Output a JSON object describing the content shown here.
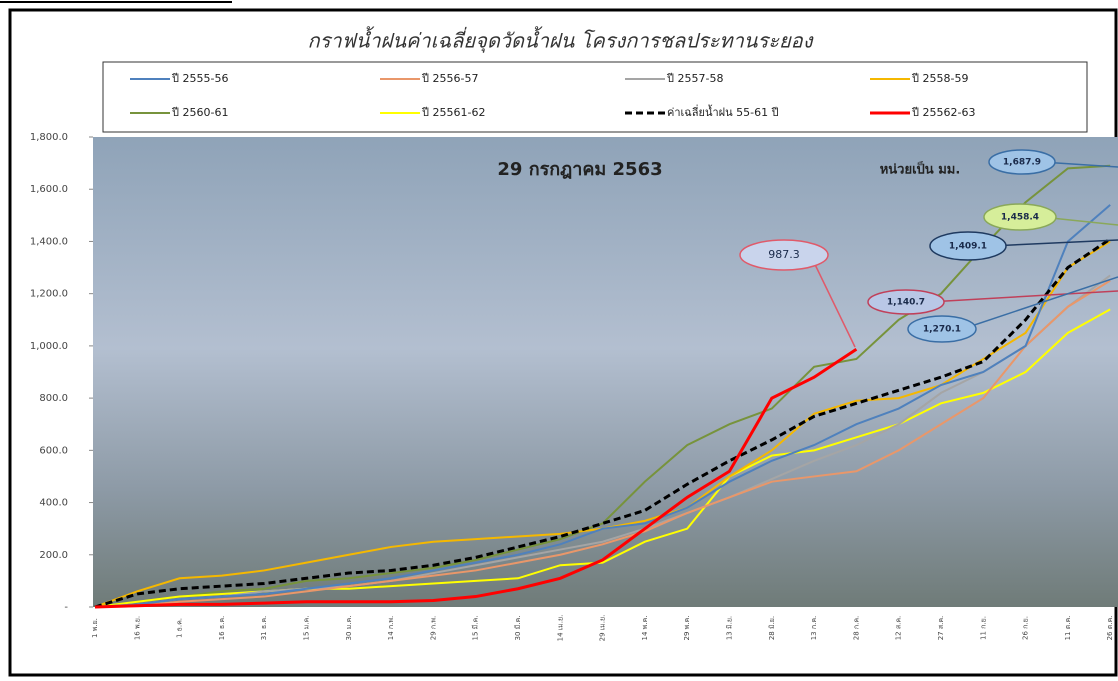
{
  "chart_data": {
    "type": "line",
    "title": "กราฟน้ำฝนค่าเฉลี่ยจุดวัดน้ำฝน โครงการชลประทานระยอง",
    "date_label": "29 กรกฎาคม 2563",
    "unit_label": "หน่วยเป็น มม.",
    "categories": [
      "1 พ.ย.",
      "16 พ.ย.",
      "1 ธ.ค.",
      "16 ธ.ค.",
      "31 ธ.ค.",
      "15 ม.ค.",
      "30 ม.ค.",
      "14 ก.พ.",
      "29 ก.พ.",
      "15 มี.ค.",
      "30 มี.ค.",
      "14 เม.ย.",
      "29 เม.ย.",
      "14 พ.ค.",
      "29 พ.ค.",
      "13 มิ.ย.",
      "28 มิ.ย.",
      "13 ก.ค.",
      "28 ก.ค.",
      "12 ส.ค.",
      "27 ส.ค.",
      "11 ก.ย.",
      "26 ก.ย.",
      "11 ต.ค.",
      "26 ต.ค."
    ],
    "ylim": [
      0,
      1800
    ],
    "yticks": [
      {
        "value": 0,
        "label": "-"
      },
      {
        "value": 200,
        "label": "200.0"
      },
      {
        "value": 400,
        "label": "400.0"
      },
      {
        "value": 600,
        "label": "600.0"
      },
      {
        "value": 800,
        "label": "800.0"
      },
      {
        "value": 1000,
        "label": "1,000.0"
      },
      {
        "value": 1200,
        "label": "1,200.0"
      },
      {
        "value": 1400,
        "label": "1,400.0"
      },
      {
        "value": 1600,
        "label": "1,600.0"
      },
      {
        "value": 1800,
        "label": "1,800.0"
      }
    ],
    "series": [
      {
        "name": "ปี 2555-56",
        "color": "#4f81bd",
        "values": [
          0,
          10,
          30,
          40,
          50,
          70,
          90,
          110,
          140,
          170,
          200,
          240,
          300,
          320,
          380,
          480,
          560,
          620,
          700,
          760,
          850,
          900,
          1000,
          1400,
          1540
        ]
      },
      {
        "name": "ปี 2556-57",
        "color": "#e9976a",
        "values": [
          0,
          5,
          20,
          30,
          40,
          60,
          80,
          100,
          120,
          140,
          170,
          200,
          240,
          290,
          360,
          420,
          480,
          500,
          520,
          600,
          700,
          800,
          1000,
          1150,
          1250
        ]
      },
      {
        "name": "ปี 2557-58",
        "color": "#a5a5a5",
        "values": [
          0,
          10,
          30,
          40,
          60,
          70,
          80,
          100,
          130,
          160,
          190,
          220,
          250,
          300,
          360,
          420,
          490,
          560,
          620,
          700,
          820,
          900,
          1000,
          1150,
          1270
        ]
      },
      {
        "name": "ปี 2558-59",
        "color": "#f5b800",
        "values": [
          0,
          60,
          110,
          120,
          140,
          170,
          200,
          230,
          250,
          260,
          270,
          280,
          300,
          330,
          380,
          500,
          600,
          740,
          790,
          800,
          850,
          950,
          1050,
          1300,
          1400
        ]
      },
      {
        "name": "ปี 2560-61",
        "color": "#77933c",
        "values": [
          0,
          20,
          40,
          60,
          70,
          100,
          110,
          130,
          150,
          180,
          220,
          260,
          320,
          480,
          620,
          700,
          760,
          920,
          950,
          1100,
          1200,
          1380,
          1550,
          1680,
          1690
        ]
      },
      {
        "name": "ปี 25561-62",
        "color": "#ffff00",
        "values": [
          0,
          20,
          40,
          50,
          60,
          70,
          70,
          80,
          90,
          100,
          110,
          160,
          170,
          250,
          300,
          500,
          580,
          600,
          650,
          700,
          780,
          820,
          900,
          1050,
          1140
        ]
      },
      {
        "name": "ค่าเฉลี่ยน้ำฝน 55-61 ปี",
        "color": "#000000",
        "dashed": true,
        "values": [
          0,
          50,
          70,
          80,
          90,
          110,
          130,
          140,
          160,
          190,
          230,
          270,
          320,
          370,
          470,
          560,
          640,
          730,
          780,
          830,
          880,
          940,
          1100,
          1300,
          1409.1
        ]
      },
      {
        "name": "ปี 25562-63",
        "color": "#ff0000",
        "values": [
          0,
          5,
          10,
          10,
          15,
          20,
          20,
          20,
          25,
          40,
          70,
          110,
          180,
          300,
          420,
          520,
          800,
          880,
          987.3,
          null,
          null,
          null,
          null,
          null,
          null
        ]
      }
    ],
    "annotations": [
      "987.3",
      "1,687.9",
      "1,458.4",
      "1,409.1",
      "1,140.7",
      "1,270.1"
    ]
  }
}
